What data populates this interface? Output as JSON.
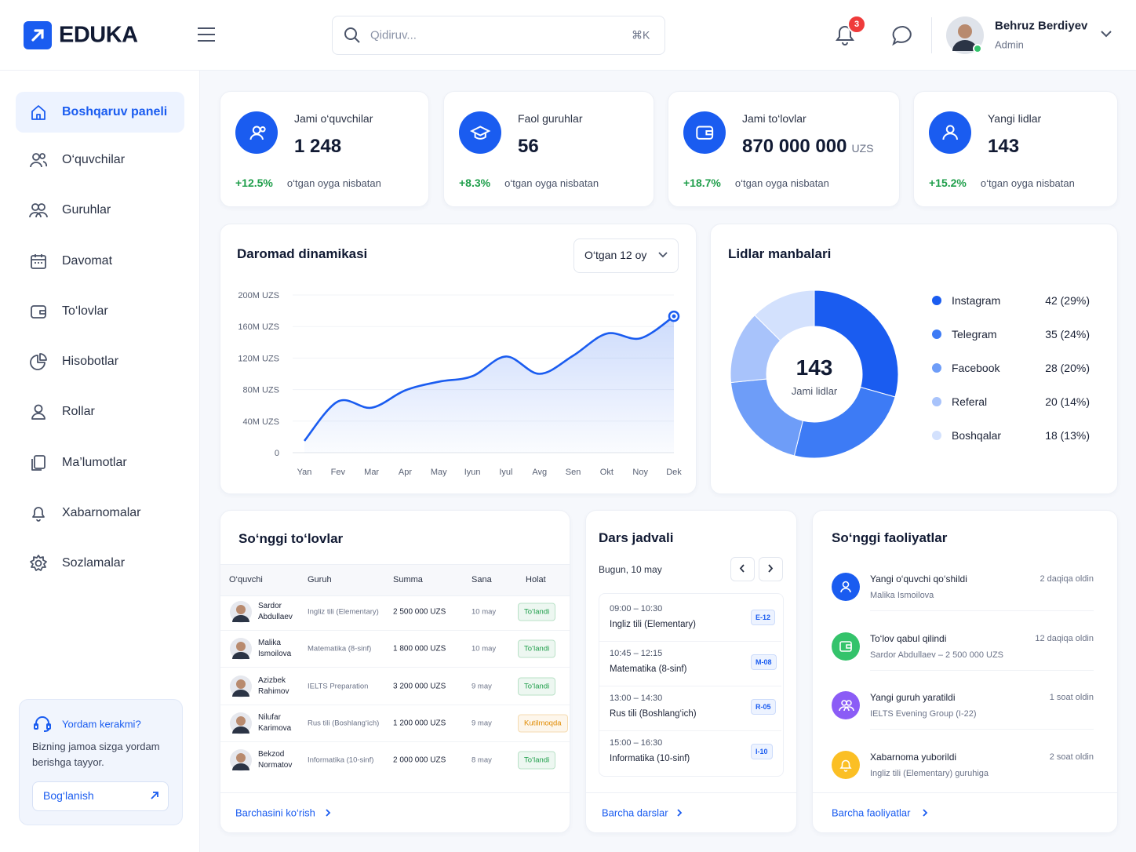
{
  "header": {
    "logo": "EDUKA",
    "search_placeholder": "Qidiruv...",
    "search_shortcut": "⌘K",
    "notification_count": 3,
    "user": {
      "name": "Behruz Berdiyev",
      "role": "Admin"
    }
  },
  "sidebar": {
    "items": [
      "Boshqaruv paneli",
      "O‘quvchilar",
      "Guruhlar",
      "Davomat",
      "To‘lovlar",
      "Hisobotlar",
      "Rollar",
      "Ma’lumotlar",
      "Xabarnomalar",
      "Sozlamalar"
    ],
    "help": {
      "title": "Yordam kerakmi?",
      "text": "Bizning jamoa sizga yordam berishga tayyor.",
      "button": "Bog‘lanish"
    }
  },
  "stats": [
    {
      "label": "Jami o‘quvchilar",
      "value": "1 248",
      "change": "+12.5%",
      "note": "o‘tgan oyga nisbatan"
    },
    {
      "label": "Faol guruhlar",
      "value": "56",
      "change": "+8.3%",
      "note": "o‘tgan oyga nisbatan"
    },
    {
      "label": "Jami to‘lovlar",
      "value": "870 000 000",
      "unit": "UZS",
      "change": "+18.7%",
      "note": "o‘tgan oyga nisbatan"
    },
    {
      "label": "Yangi lidlar",
      "value": "143",
      "change": "+15.2%",
      "note": "o‘tgan oyga nisbatan"
    }
  ],
  "chart_data": [
    {
      "type": "line",
      "title": "Daromad dinamikasi",
      "period": "O‘tgan 12 oy",
      "categories": [
        "Yan",
        "Fev",
        "Mar",
        "Apr",
        "May",
        "Iyun",
        "Iyul",
        "Avg",
        "Sen",
        "Okt",
        "Noy",
        "Dek"
      ],
      "values": [
        15000000,
        65000000,
        57000000,
        79000000,
        90000000,
        97000000,
        122000000,
        100000000,
        123000000,
        151000000,
        145000000,
        173000000
      ],
      "color": "#1a5cf0",
      "ylim": [
        0,
        200000000
      ],
      "yticks": [
        0,
        {
          "value": 40000000,
          "label": "40M UZS"
        },
        {
          "value": 80000000,
          "label": "80M UZS"
        },
        {
          "value": 120000000,
          "label": "120M UZS"
        },
        {
          "value": 160000000,
          "label": "160M UZS"
        },
        {
          "value": 200000000,
          "label": "200M UZS"
        }
      ],
      "grid": true
    },
    {
      "type": "pie",
      "title": "Lidlar manbalari",
      "center_value": 143,
      "center_label": "Jami lidlar",
      "categories": [
        "Instagram",
        "Telegram",
        "Facebook",
        "Referal",
        "Boshqalar"
      ],
      "values": [
        42,
        35,
        28,
        20,
        18
      ],
      "value_labels": [
        "42 (29%)",
        "35 (24%)",
        "28 (20%)",
        "20 (14%)",
        "18 (13%)"
      ],
      "colors": [
        "#1a5cf0",
        "#3d7bf5",
        "#6e9df8",
        "#a8c3fb",
        "#d3e1fd"
      ]
    }
  ],
  "payments": {
    "title": "So‘nggi to‘lovlar",
    "columns": [
      "O‘quvchi",
      "Guruh",
      "Summa",
      "Sana",
      "Holat"
    ],
    "rows": [
      {
        "student": "Sardor Abdullaev",
        "group": "Ingliz tili (Elementary)",
        "amount": "2 500 000 UZS",
        "date": "10 may",
        "status": "To‘landi",
        "status_color": "#1e9e4a"
      },
      {
        "student": "Malika Ismoilova",
        "group": "Matematika (8-sinf)",
        "amount": "1 800 000 UZS",
        "date": "10 may",
        "status": "To‘landi",
        "status_color": "#1e9e4a"
      },
      {
        "student": "Azizbek Rahimov",
        "group": "IELTS Preparation",
        "amount": "3 200 000 UZS",
        "date": "9 may",
        "status": "To‘landi",
        "status_color": "#1e9e4a"
      },
      {
        "student": "Nilufar Karimova",
        "group": "Rus tili (Boshlang‘ich)",
        "amount": "1 200 000 UZS",
        "date": "9 may",
        "status": "Kutilmoqda",
        "status_color": "#e08a00"
      },
      {
        "student": "Bekzod Normatov",
        "group": "Informatika (10-sinf)",
        "amount": "2 000 000 UZS",
        "date": "8 may",
        "status": "To‘landi",
        "status_color": "#1e9e4a"
      }
    ],
    "link": "Barchasini ko‘rish"
  },
  "schedule": {
    "title": "Dars jadvali",
    "date": "Bugun, 10 may",
    "lessons": [
      {
        "time": "09:00 – 10:30",
        "name": "Ingliz tili (Elementary)",
        "room": "E-12"
      },
      {
        "time": "10:45 – 12:15",
        "name": "Matematika (8-sinf)",
        "room": "M-08"
      },
      {
        "time": "13:00 – 14:30",
        "name": "Rus tili (Boshlang‘ich)",
        "room": "R-05"
      },
      {
        "time": "15:00 – 16:30",
        "name": "Informatika (10-sinf)",
        "room": "I-10"
      }
    ],
    "link": "Barcha darslar"
  },
  "activities": {
    "title": "So‘nggi faoliyatlar",
    "items": [
      {
        "title": "Yangi o‘quvchi qo‘shildi",
        "detail": "Malika Ismoilova",
        "time": "2 daqiqa oldin",
        "color": "#1a5cf0"
      },
      {
        "title": "To‘lov qabul qilindi",
        "detail": "Sardor Abdullaev – 2 500 000 UZS",
        "time": "12 daqiqa oldin",
        "color": "#34c36b"
      },
      {
        "title": "Yangi guruh yaratildi",
        "detail": "IELTS Evening Group (I-22)",
        "time": "1 soat oldin",
        "color": "#8b5cf6"
      },
      {
        "title": "Xabarnoma yuborildi",
        "detail": "Ingliz tili (Elementary) guruhiga",
        "time": "2 soat oldin",
        "color": "#fbbf24"
      }
    ],
    "link": "Barcha faoliyatlar"
  }
}
